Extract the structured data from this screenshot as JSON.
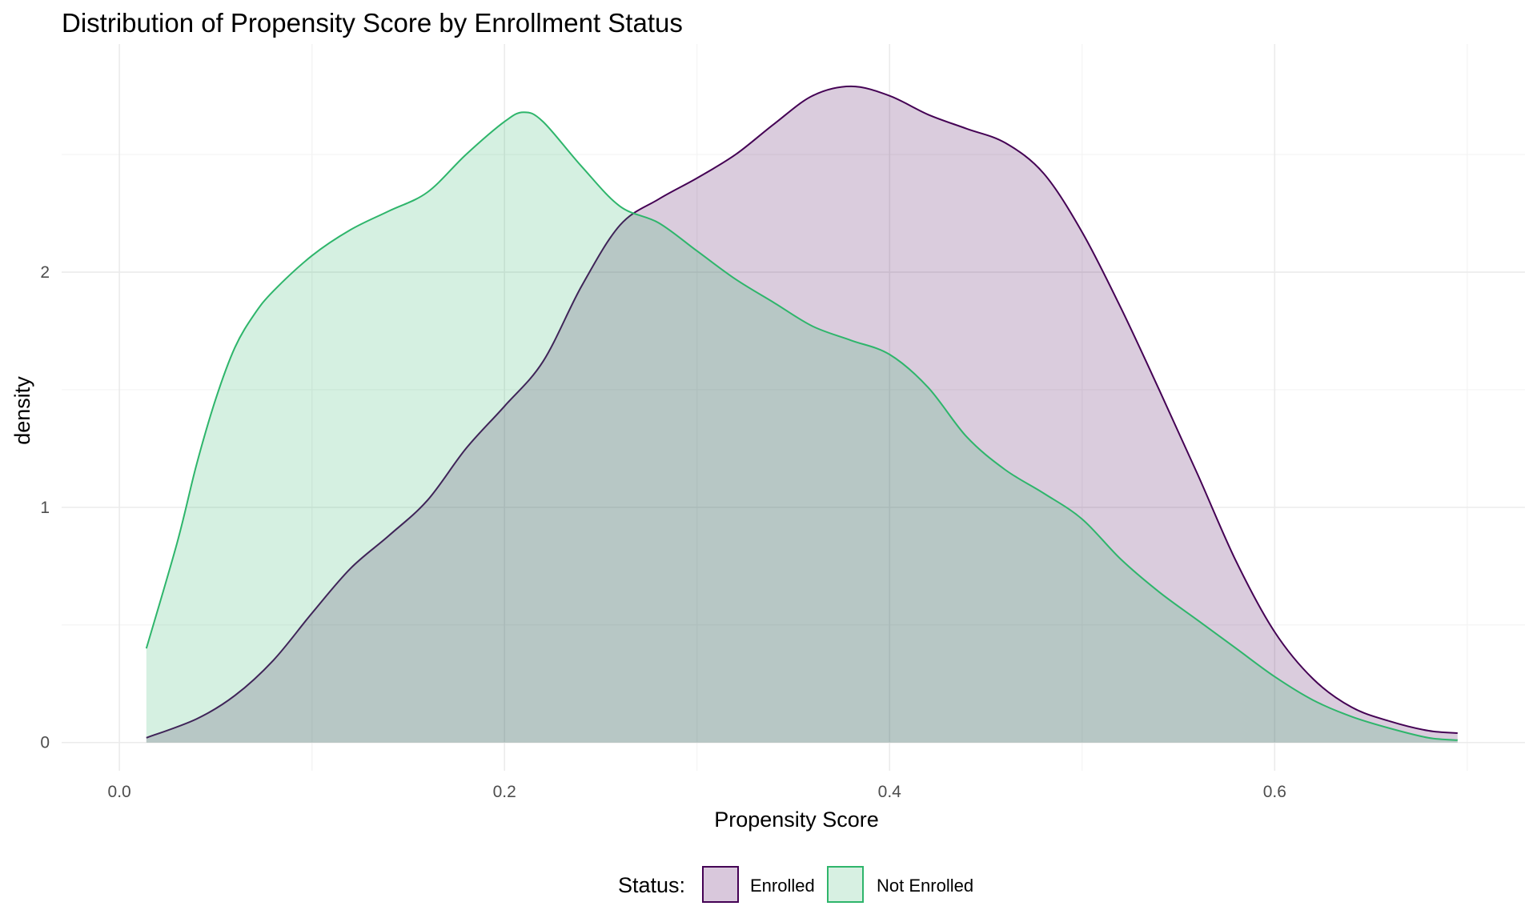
{
  "chart_data": {
    "type": "area",
    "title": "Distribution of Propensity Score by Enrollment Status",
    "xlabel": "Propensity Score",
    "ylabel": "density",
    "xlim": [
      -0.03,
      0.73
    ],
    "ylim": [
      -0.12,
      2.97
    ],
    "x_ticks": [
      0.0,
      0.2,
      0.4,
      0.6
    ],
    "x_tick_labels": [
      "0.0",
      "0.2",
      "0.4",
      "0.6"
    ],
    "y_ticks": [
      0,
      1,
      2
    ],
    "y_tick_labels": [
      "0",
      "1",
      "2"
    ],
    "grid": true,
    "legend": {
      "title": "Status:",
      "position": "bottom"
    },
    "series": [
      {
        "name": "Enrolled",
        "color": "#440154",
        "fill": "#d9c8dc",
        "x": [
          0.014,
          0.04,
          0.06,
          0.08,
          0.1,
          0.12,
          0.14,
          0.16,
          0.18,
          0.2,
          0.22,
          0.24,
          0.26,
          0.28,
          0.3,
          0.32,
          0.34,
          0.36,
          0.38,
          0.4,
          0.42,
          0.44,
          0.46,
          0.48,
          0.5,
          0.52,
          0.54,
          0.56,
          0.58,
          0.6,
          0.62,
          0.64,
          0.66,
          0.68,
          0.695
        ],
        "y": [
          0.02,
          0.1,
          0.2,
          0.35,
          0.55,
          0.74,
          0.88,
          1.03,
          1.25,
          1.43,
          1.62,
          1.94,
          2.2,
          2.31,
          2.4,
          2.5,
          2.63,
          2.75,
          2.79,
          2.75,
          2.67,
          2.61,
          2.55,
          2.42,
          2.17,
          1.85,
          1.5,
          1.14,
          0.77,
          0.47,
          0.27,
          0.15,
          0.09,
          0.05,
          0.04
        ]
      },
      {
        "name": "Not Enrolled",
        "color": "#2eb56b",
        "fill": "#d7f0e2",
        "x": [
          0.014,
          0.03,
          0.04,
          0.05,
          0.06,
          0.07,
          0.08,
          0.1,
          0.12,
          0.14,
          0.16,
          0.18,
          0.2,
          0.21,
          0.22,
          0.24,
          0.26,
          0.28,
          0.3,
          0.32,
          0.34,
          0.36,
          0.38,
          0.4,
          0.42,
          0.44,
          0.46,
          0.48,
          0.5,
          0.52,
          0.54,
          0.56,
          0.58,
          0.6,
          0.62,
          0.64,
          0.66,
          0.68,
          0.695
        ],
        "y": [
          0.4,
          0.85,
          1.18,
          1.46,
          1.68,
          1.82,
          1.92,
          2.07,
          2.18,
          2.26,
          2.34,
          2.5,
          2.64,
          2.68,
          2.64,
          2.45,
          2.28,
          2.21,
          2.09,
          1.97,
          1.87,
          1.77,
          1.71,
          1.65,
          1.51,
          1.3,
          1.16,
          1.06,
          0.95,
          0.78,
          0.64,
          0.52,
          0.4,
          0.28,
          0.18,
          0.11,
          0.06,
          0.02,
          0.01
        ]
      }
    ]
  }
}
